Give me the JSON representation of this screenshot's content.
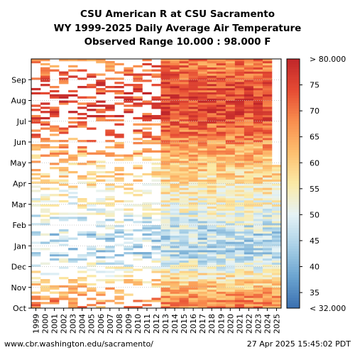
{
  "chart_data": {
    "type": "heatmap",
    "title_lines": [
      "CSU American R at CSU Sacramento",
      "WY 1999-2025 Daily Average Air Temperature",
      "Observed Range 10.000 : 98.000 F"
    ],
    "x": [
      "1999",
      "2000",
      "2001",
      "2002",
      "2003",
      "2004",
      "2005",
      "2006",
      "2007",
      "2008",
      "2009",
      "2010",
      "2011",
      "2012",
      "2013",
      "2014",
      "2015",
      "2016",
      "2017",
      "2018",
      "2019",
      "2020",
      "2021",
      "2022",
      "2023",
      "2024",
      "2025"
    ],
    "y_ticks": [
      "Oct",
      "Nov",
      "Dec",
      "Jan",
      "Feb",
      "Mar",
      "Apr",
      "May",
      "Jun",
      "Jul",
      "Aug",
      "Sep"
    ],
    "color_scale": {
      "min": 32,
      "max": 80,
      "ticks": [
        35,
        40,
        45,
        50,
        55,
        60,
        65,
        70,
        75
      ],
      "under_label": "< 32.000",
      "over_label": "> 80.000",
      "colors": [
        "#3a6fb0",
        "#6aa3cf",
        "#a9d1e7",
        "#e6f3f6",
        "#fbeaa6",
        "#fdbf6f",
        "#f98e4e",
        "#e64b33",
        "#c0262a"
      ]
    },
    "monthly_mean_F": [
      66,
      56,
      46,
      46,
      51,
      55,
      59,
      64,
      70,
      75,
      74,
      70
    ],
    "sparse_years_before": "2013",
    "data_start_2025_month": "Oct"
  },
  "footer": {
    "source": "www.cbr.washington.edu/sacramento/",
    "timestamp": "27 Apr 2025 15:45:02 PDT"
  }
}
